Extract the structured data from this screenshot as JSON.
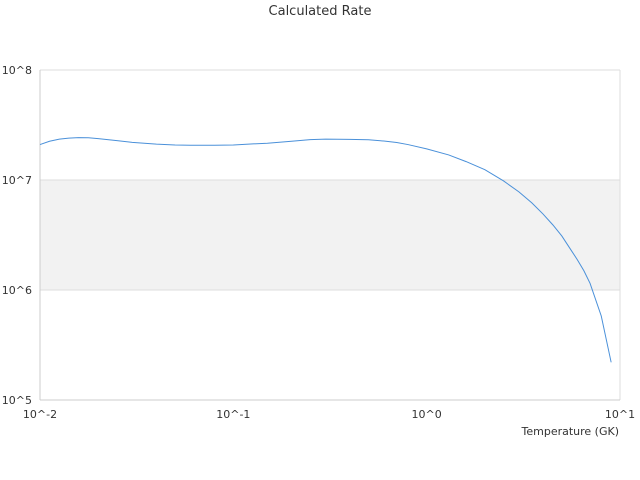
{
  "chart_data": {
    "type": "line",
    "title": "Calculated Rate",
    "xlabel": "Temperature (GK)",
    "ylabel": "",
    "x_scale": "log",
    "y_scale": "log",
    "xlim": [
      0.01,
      10
    ],
    "ylim": [
      100000,
      100000000
    ],
    "x_tick_labels": [
      "10^-2",
      "10^-1",
      "10^0",
      "10^1"
    ],
    "y_tick_labels": [
      "10^5",
      "10^6",
      "10^7",
      "10^8"
    ],
    "grid": true,
    "shaded_band": [
      1000000,
      10000000
    ],
    "series": [
      {
        "color": "#4a90d9",
        "x": [
          0.01,
          0.0112,
          0.0126,
          0.0141,
          0.0158,
          0.0178,
          0.02,
          0.025,
          0.03,
          0.04,
          0.05,
          0.06,
          0.08,
          0.1,
          0.12,
          0.15,
          0.2,
          0.25,
          0.3,
          0.4,
          0.5,
          0.6,
          0.7,
          0.8,
          1.0,
          1.3,
          1.6,
          2.0,
          2.5,
          3.0,
          3.5,
          4.0,
          4.5,
          5.0,
          5.5,
          6.0,
          6.5,
          7.0,
          8.0,
          9.0
        ],
        "y": [
          21000000,
          22500000,
          23500000,
          24000000,
          24300000,
          24200000,
          23800000,
          22800000,
          22000000,
          21200000,
          20800000,
          20700000,
          20700000,
          20800000,
          21200000,
          21600000,
          22500000,
          23300000,
          23500000,
          23400000,
          23200000,
          22600000,
          21900000,
          21000000,
          19200000,
          16900000,
          14700000,
          12400000,
          9800000,
          7800000,
          6200000,
          4900000,
          3900000,
          3100000,
          2400000,
          1900000,
          1500000,
          1150000,
          580000,
          220000
        ]
      }
    ]
  }
}
